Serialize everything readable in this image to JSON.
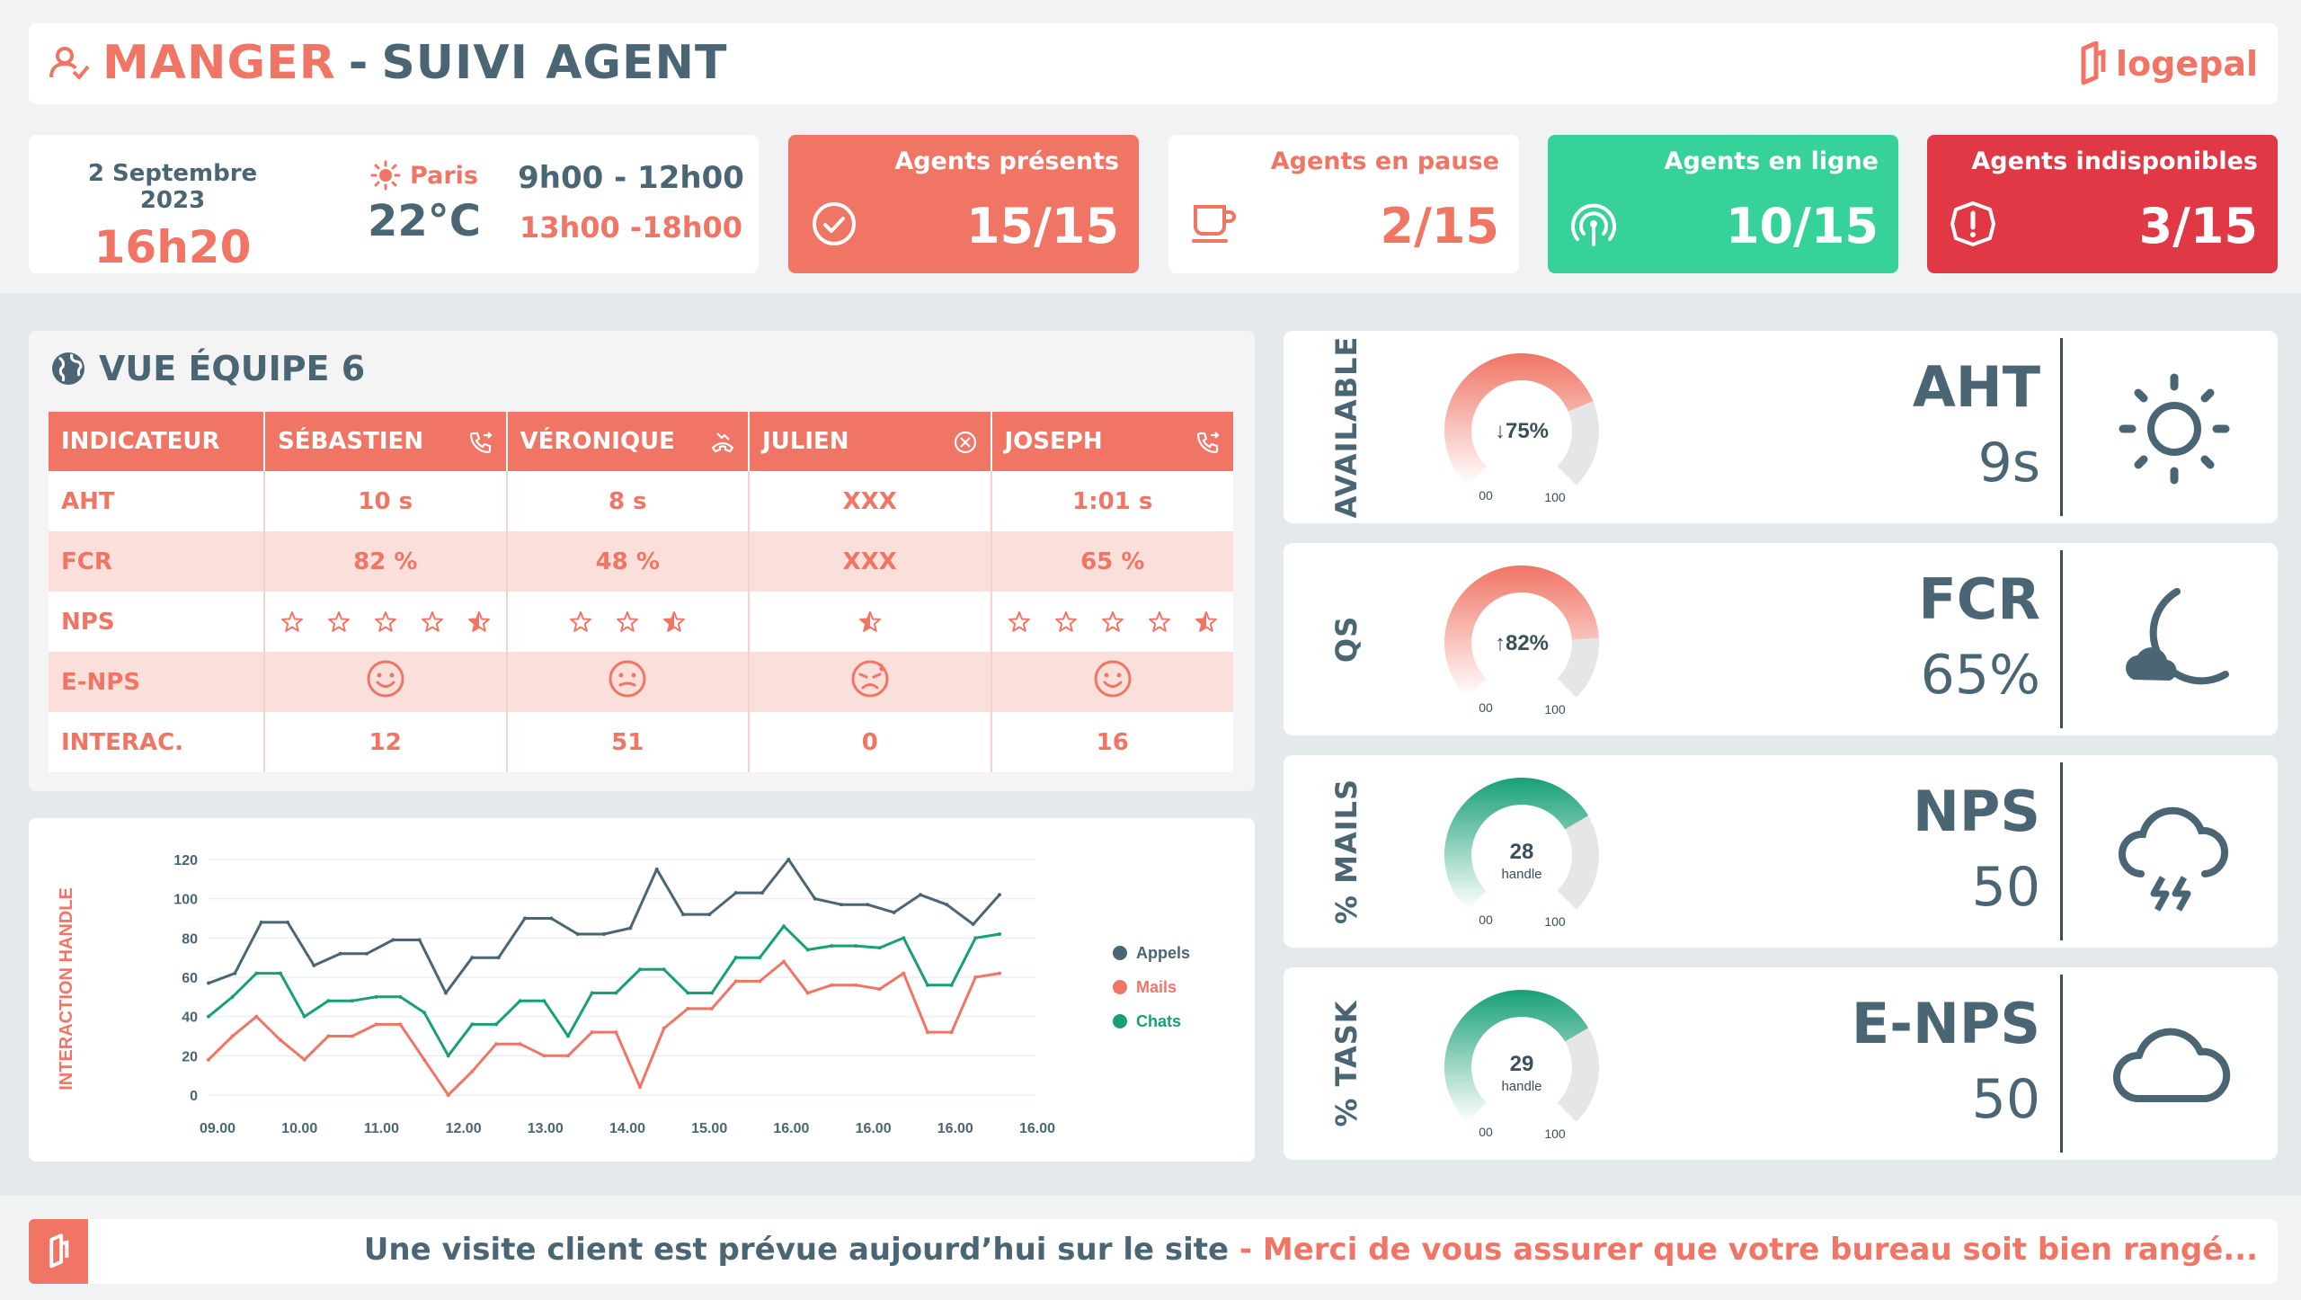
{
  "header": {
    "title_brand": "MANGER",
    "title_sep": "-",
    "title_rest": "SUIVI AGENT",
    "logo_text": "logepal"
  },
  "info": {
    "date": "2 Septembre 2023",
    "time": "16h20",
    "city": "Paris",
    "temperature": "22°C",
    "shift_morning": "9h00 - 12h00",
    "shift_afternoon": "13h00 -18h00"
  },
  "kpis": [
    {
      "label": "Agents présents",
      "value": "15/15",
      "icon": "check-circle-icon",
      "bg": "#f07565"
    },
    {
      "label": "Agents en pause",
      "value": "2/15",
      "icon": "coffee-cup-icon",
      "bg": "#ffffff"
    },
    {
      "label": "Agents en ligne",
      "value": "10/15",
      "icon": "broadcast-icon",
      "bg": "#37d29a"
    },
    {
      "label": "Agents indisponibles",
      "value": "3/15",
      "icon": "alert-icon",
      "bg": "#e03845"
    }
  ],
  "team": {
    "title": "VUE ÉQUIPE 6",
    "headers": [
      "INDICATEUR",
      "SÉBASTIEN",
      "VÉRONIQUE",
      "JULIEN",
      "JOSEPH"
    ],
    "header_icons": [
      "",
      "phone-forward-icon",
      "call-end-icon",
      "close-circle-icon",
      "phone-forward-icon"
    ],
    "rows": [
      {
        "label": "AHT",
        "values": [
          "10 s",
          "8 s",
          "XXX",
          "1:01 s"
        ]
      },
      {
        "label": "FCR",
        "values": [
          "82 %",
          "48 %",
          "XXX",
          "65 %"
        ]
      },
      {
        "label": "NPS",
        "stars": [
          5,
          3,
          1,
          5
        ]
      },
      {
        "label": "E-NPS",
        "moods": [
          "smile",
          "neutral",
          "sad",
          "smile"
        ]
      },
      {
        "label": "INTERAC.",
        "values": [
          "12",
          "51",
          "0",
          "16"
        ]
      }
    ]
  },
  "chart_data": {
    "type": "line",
    "ylabel": "INTERACTION HANDLE",
    "ylim": [
      0,
      120
    ],
    "yticks": [
      0,
      20,
      40,
      60,
      80,
      100,
      120
    ],
    "xticks": [
      "09.00",
      "10.00",
      "11.00",
      "12.00",
      "13.00",
      "14.00",
      "15.00",
      "16.00",
      "16.00",
      "16.00",
      "16.00"
    ],
    "colors": {
      "Appels": "#4a6573",
      "Mails": "#f07565",
      "Chats": "#17a077"
    },
    "series": [
      {
        "name": "Appels",
        "values": [
          57,
          62,
          88,
          88,
          66,
          72,
          72,
          79,
          79,
          52,
          70,
          70,
          90,
          90,
          82,
          82,
          85,
          115,
          92,
          92,
          103,
          103,
          120,
          100,
          97,
          97,
          93,
          102,
          97,
          87,
          102
        ]
      },
      {
        "name": "Mails",
        "values": [
          18,
          30,
          40,
          28,
          18,
          30,
          30,
          36,
          36,
          18,
          0,
          12,
          26,
          26,
          20,
          20,
          32,
          32,
          4,
          34,
          44,
          44,
          58,
          58,
          68,
          52,
          56,
          56,
          54,
          62,
          32,
          32,
          60,
          62
        ]
      },
      {
        "name": "Chats",
        "values": [
          40,
          50,
          62,
          62,
          40,
          48,
          48,
          50,
          50,
          42,
          20,
          36,
          36,
          48,
          48,
          30,
          52,
          52,
          64,
          64,
          52,
          52,
          70,
          70,
          86,
          74,
          76,
          76,
          75,
          80,
          56,
          56,
          80,
          82
        ]
      }
    ]
  },
  "gauges": [
    {
      "side": "AVAILABLE",
      "center": "75%",
      "arrow": "↓",
      "sub": "",
      "min": "00",
      "max": "100",
      "fraction": 0.75,
      "color": "#f07565",
      "metric": "AHT",
      "value": "9s",
      "weather": "sun-icon"
    },
    {
      "side": "QS",
      "center": "82%",
      "arrow": "↑",
      "sub": "",
      "min": "00",
      "max": "100",
      "fraction": 0.82,
      "color": "#f07565",
      "metric": "FCR",
      "value": "65%",
      "weather": "moon-cloud-icon"
    },
    {
      "side": "% MAILS",
      "center": "28",
      "arrow": "",
      "sub": "handle",
      "min": "00",
      "max": "100",
      "fraction": 0.72,
      "color": "#17a077",
      "metric": "NPS",
      "value": "50",
      "weather": "storm-cloud-icon"
    },
    {
      "side": "% TASK",
      "center": "29",
      "arrow": "",
      "sub": "handle",
      "min": "00",
      "max": "100",
      "fraction": 0.72,
      "color": "#17a077",
      "metric": "E-NPS",
      "value": "50",
      "weather": "cloud-icon"
    }
  ],
  "footer": {
    "message_main": "Une visite client est prévue aujourd’hui sur le site",
    "message_sep": " - ",
    "message_alert": "Merci de vous assurer que votre bureau soit bien rangé..."
  }
}
